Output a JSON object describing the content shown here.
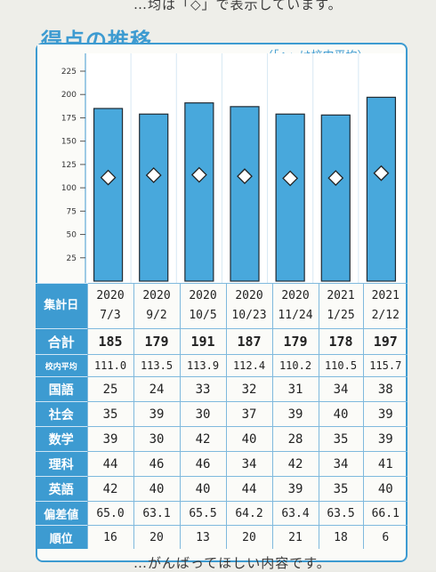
{
  "page": {
    "top_text": "…均は「◇」で表示しています。",
    "heading": "得点の推移",
    "legend_note": "（「◇」は校内平均）",
    "bottom_text": "…がんばってほしい内容です。"
  },
  "colors": {
    "accent": "#3d9bd1",
    "bar_fill": "#48a8dc",
    "bar_stroke": "#1f2a33",
    "marker_fill": "#ffffff"
  },
  "chart_data": {
    "type": "bar",
    "categories": [
      "2020 7/3",
      "2020 9/2",
      "2020 10/5",
      "2020 10/23",
      "2020 11/24",
      "2021 1/25",
      "2021 2/12"
    ],
    "yticks": [
      25,
      50,
      75,
      100,
      125,
      150,
      175,
      200,
      225
    ],
    "ylim": [
      0,
      240
    ],
    "series": [
      {
        "values": [
          185,
          179,
          191,
          187,
          179,
          178,
          197
        ],
        "marker": "bar"
      },
      {
        "values": [
          111.0,
          113.5,
          113.9,
          112.4,
          110.2,
          110.5,
          115.7
        ],
        "marker": "diamond"
      }
    ],
    "legend": "top-right",
    "grid": false
  },
  "table": {
    "date_header": "集計日",
    "dates": [
      {
        "year": "2020",
        "md": "7/3"
      },
      {
        "year": "2020",
        "md": "9/2"
      },
      {
        "year": "2020",
        "md": "10/5"
      },
      {
        "year": "2020",
        "md": "10/23"
      },
      {
        "year": "2020",
        "md": "11/24"
      },
      {
        "year": "2021",
        "md": "1/25"
      },
      {
        "year": "2021",
        "md": "2/12"
      }
    ],
    "rows": [
      {
        "label": "合計",
        "values": [
          "185",
          "179",
          "191",
          "187",
          "179",
          "178",
          "197"
        ]
      },
      {
        "label": "校内平均",
        "values": [
          "111.0",
          "113.5",
          "113.9",
          "112.4",
          "110.2",
          "110.5",
          "115.7"
        ]
      },
      {
        "label": "国語",
        "values": [
          "25",
          "24",
          "33",
          "32",
          "31",
          "34",
          "38"
        ]
      },
      {
        "label": "社会",
        "values": [
          "35",
          "39",
          "30",
          "37",
          "39",
          "40",
          "39"
        ]
      },
      {
        "label": "数学",
        "values": [
          "39",
          "30",
          "42",
          "40",
          "28",
          "35",
          "39"
        ]
      },
      {
        "label": "理科",
        "values": [
          "44",
          "46",
          "46",
          "34",
          "42",
          "34",
          "41"
        ]
      },
      {
        "label": "英語",
        "values": [
          "42",
          "40",
          "40",
          "44",
          "39",
          "35",
          "40"
        ]
      },
      {
        "label": "偏差値",
        "values": [
          "65.0",
          "63.1",
          "65.5",
          "64.2",
          "63.4",
          "63.5",
          "66.1"
        ]
      },
      {
        "label": "順位",
        "values": [
          "16",
          "20",
          "13",
          "20",
          "21",
          "18",
          "6"
        ]
      }
    ]
  }
}
